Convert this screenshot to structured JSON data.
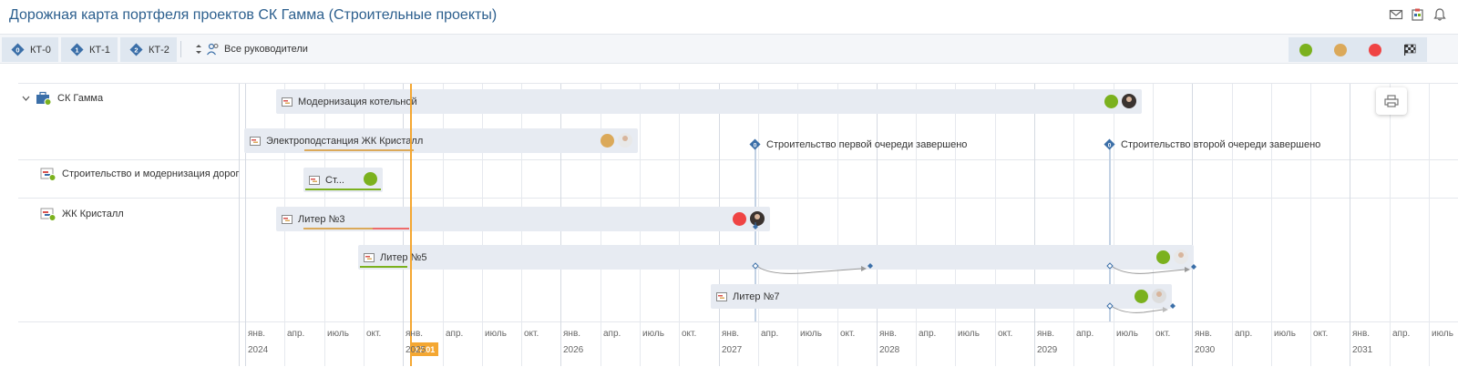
{
  "header": {
    "title": "Дорожная карта портфеля проектов СК Гамма (Строительные проекты)",
    "icons": [
      "mail-icon",
      "calendar-clip-icon",
      "bell-icon"
    ]
  },
  "toolbar": {
    "kt_buttons": [
      {
        "num": "0",
        "label": "КТ-0"
      },
      {
        "num": "1",
        "label": "КТ-1"
      },
      {
        "num": "2",
        "label": "КТ-2"
      }
    ],
    "managers_label": "Все руководители",
    "status_filters": [
      {
        "name": "green",
        "color": "#7bb11e"
      },
      {
        "name": "yellow",
        "color": "#dba95a"
      },
      {
        "name": "red",
        "color": "#ef4444"
      }
    ]
  },
  "rows": [
    {
      "label": "СК Гамма"
    },
    {
      "label": "Строительство и модернизация дорог"
    },
    {
      "label": "ЖК Кристалл"
    }
  ],
  "bars": [
    {
      "label": "Модернизация котельной",
      "status": "#7bb11e",
      "avatar": "photo"
    },
    {
      "label": "Электроподстанция ЖК Кристалл",
      "status": "#dba95a",
      "avatar": "sketch"
    },
    {
      "label": "Ст...",
      "status": "#7bb11e"
    },
    {
      "label": "Литер №3",
      "status": "#ef4444",
      "avatar": "photo"
    },
    {
      "label": "Литер №5",
      "status": "#7bb11e",
      "avatar": "sketch"
    },
    {
      "label": "Литер №7",
      "status": "#7bb11e",
      "avatar": "photo2"
    }
  ],
  "milestones": [
    {
      "num": "0",
      "label": "Строительство первой очереди завершено"
    },
    {
      "num": "0",
      "label": "Строительство второй очереди завершено"
    }
  ],
  "timeline": {
    "months": [
      "янв.",
      "апр.",
      "июль",
      "окт."
    ],
    "years": [
      "2024",
      "2025",
      "2026",
      "2027",
      "2028",
      "2029",
      "2030",
      "2031"
    ],
    "today_label": "17.01",
    "today_date": "2025-01-17"
  },
  "colors": {
    "accent": "#2c5f8e",
    "today": "#f4a732",
    "milestone": "#3b6fa8"
  }
}
